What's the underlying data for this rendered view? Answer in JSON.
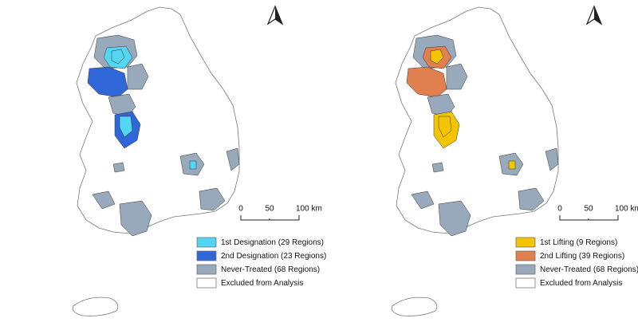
{
  "maps": [
    {
      "scale_bar": {
        "labels": [
          "0",
          "50",
          "100 km"
        ]
      },
      "legend": [
        {
          "label": "1st Designation (29 Regions)",
          "color": "#52d6f4"
        },
        {
          "label": "2nd Designation (23 Regions)",
          "color": "#2f67d8"
        },
        {
          "label": "Never-Treated (68 Regions)",
          "color": "#98a9bb"
        },
        {
          "label": "Excluded from Analysis",
          "color": "#ffffff"
        }
      ]
    },
    {
      "scale_bar": {
        "labels": [
          "0",
          "50",
          "100 km"
        ]
      },
      "legend": [
        {
          "label": "1st Lifting (9 Regions)",
          "color": "#f5c400"
        },
        {
          "label": "2nd Lifting (39 Regions)",
          "color": "#e0804f"
        },
        {
          "label": "Never-Treated (68 Regions)",
          "color": "#98a9bb"
        },
        {
          "label": "Excluded from Analysis",
          "color": "#ffffff"
        }
      ]
    }
  ]
}
